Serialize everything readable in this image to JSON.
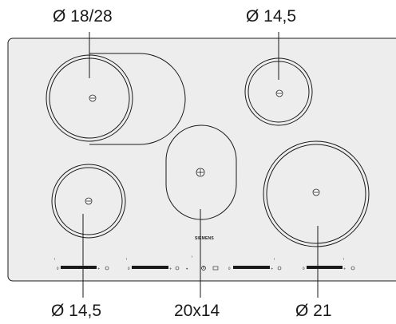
{
  "labels": {
    "top_left": "Ø 18/28",
    "top_right": "Ø 14,5",
    "bottom_left": "Ø 14,5",
    "bottom_center": "20x14",
    "bottom_right": "Ø 21"
  },
  "brand": "SIEMENS",
  "colors": {
    "cooktop": "#ededed",
    "outline": "#1a1a1a",
    "background": "#ffffff"
  },
  "icons": {
    "zone_center": "zone-center-icon",
    "control_slider": "touch-slider-icon"
  }
}
